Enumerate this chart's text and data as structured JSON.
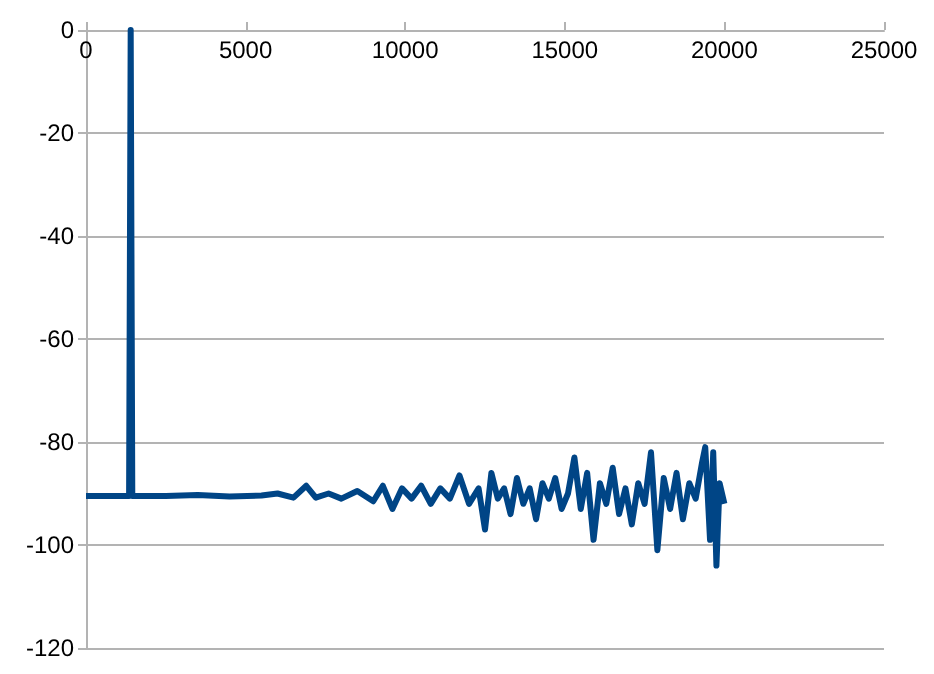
{
  "chart_data": {
    "type": "line",
    "x": [
      0,
      1350,
      1400,
      1450,
      2500,
      3500,
      4500,
      5500,
      6000,
      6500,
      6900,
      7200,
      7600,
      8000,
      8500,
      9000,
      9300,
      9600,
      9900,
      10200,
      10500,
      10800,
      11100,
      11400,
      11700,
      12000,
      12300,
      12500,
      12700,
      12900,
      13100,
      13300,
      13500,
      13700,
      13900,
      14100,
      14300,
      14500,
      14700,
      14900,
      15100,
      15300,
      15500,
      15700,
      15900,
      16100,
      16300,
      16500,
      16700,
      16900,
      17100,
      17300,
      17500,
      17700,
      17900,
      18100,
      18300,
      18500,
      18700,
      18900,
      19100,
      19300,
      19400,
      19550,
      19650,
      19750,
      19850,
      20000
    ],
    "series": [
      {
        "color": "#004586",
        "values": [
          -90.5,
          -90.5,
          0,
          -90.5,
          -90.5,
          -90.3,
          -90.6,
          -90.4,
          -90,
          -90.8,
          -88.5,
          -90.8,
          -90,
          -91,
          -89.5,
          -91.5,
          -88.5,
          -93,
          -89,
          -91,
          -88.5,
          -92,
          -89,
          -91,
          -86.5,
          -92,
          -89,
          -97,
          -86,
          -91,
          -89,
          -94,
          -87,
          -92,
          -89,
          -95,
          -88,
          -91,
          -87,
          -93,
          -90,
          -83,
          -93,
          -86,
          -99,
          -88,
          -92,
          -85,
          -94,
          -89,
          -96,
          -88,
          -92,
          -82,
          -101,
          -87,
          -93,
          -86,
          -95,
          -88,
          -91,
          -84,
          -81,
          -99,
          -82,
          -104,
          -88,
          -92
        ]
      }
    ],
    "xlim": [
      0,
      25000
    ],
    "xticks": [
      0,
      5000,
      10000,
      15000,
      20000,
      25000
    ],
    "ylim": [
      -120,
      0
    ],
    "yticks": [
      -120,
      -100,
      -80,
      -60,
      -40,
      -20,
      0
    ],
    "grid": "y",
    "marker": "none",
    "line_style": "solid"
  }
}
